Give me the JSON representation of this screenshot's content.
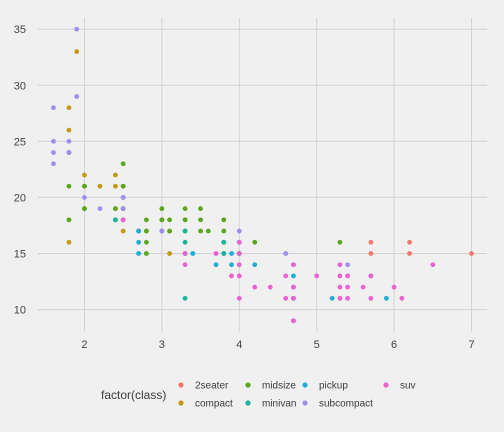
{
  "chart_data": {
    "type": "scatter",
    "title": "",
    "xlabel": "",
    "ylabel": "",
    "xlim": [
      1.4,
      7.2
    ],
    "ylim": [
      8,
      36
    ],
    "x_ticks": [
      2,
      3,
      4,
      5,
      6,
      7
    ],
    "y_ticks": [
      10,
      15,
      20,
      25,
      30,
      35
    ],
    "grid": true,
    "legend": {
      "title": "factor(class)",
      "position": "bottom",
      "entries": [
        {
          "label": "2seater",
          "color": "#f0796b"
        },
        {
          "label": "midsize",
          "color": "#5aa61c"
        },
        {
          "label": "pickup",
          "color": "#1fadd8"
        },
        {
          "label": "suv",
          "color": "#ea61d2"
        },
        {
          "label": "compact",
          "color": "#c49a14"
        },
        {
          "label": "minivan",
          "color": "#19b39e"
        },
        {
          "label": "subcompact",
          "color": "#a18cf0"
        }
      ]
    },
    "series": [
      {
        "name": "2seater",
        "color": "#f0796b",
        "points": [
          [
            5.7,
            16
          ],
          [
            5.7,
            15
          ],
          [
            6.2,
            16
          ],
          [
            6.2,
            15
          ],
          [
            7.0,
            15
          ]
        ]
      },
      {
        "name": "compact",
        "color": "#c49a14",
        "points": [
          [
            1.8,
            16
          ],
          [
            1.8,
            24
          ],
          [
            1.8,
            26
          ],
          [
            1.8,
            28
          ],
          [
            1.9,
            33
          ],
          [
            2.0,
            19
          ],
          [
            2.0,
            21
          ],
          [
            2.0,
            22
          ],
          [
            2.2,
            21
          ],
          [
            2.4,
            19
          ],
          [
            2.4,
            21
          ],
          [
            2.4,
            22
          ],
          [
            2.5,
            17
          ],
          [
            2.5,
            19
          ],
          [
            2.5,
            21
          ],
          [
            2.8,
            17
          ],
          [
            3.0,
            18
          ],
          [
            3.1,
            15
          ],
          [
            3.1,
            17
          ],
          [
            3.3,
            18
          ]
        ]
      },
      {
        "name": "midsize",
        "color": "#5aa61c",
        "points": [
          [
            1.8,
            18
          ],
          [
            1.8,
            21
          ],
          [
            2.0,
            19
          ],
          [
            2.0,
            21
          ],
          [
            2.4,
            18
          ],
          [
            2.4,
            19
          ],
          [
            2.5,
            18
          ],
          [
            2.5,
            19
          ],
          [
            2.5,
            20
          ],
          [
            2.5,
            21
          ],
          [
            2.5,
            23
          ],
          [
            2.7,
            17
          ],
          [
            2.8,
            15
          ],
          [
            2.8,
            16
          ],
          [
            2.8,
            17
          ],
          [
            2.8,
            18
          ],
          [
            3.0,
            18
          ],
          [
            3.0,
            19
          ],
          [
            3.1,
            17
          ],
          [
            3.1,
            18
          ],
          [
            3.3,
            17
          ],
          [
            3.3,
            18
          ],
          [
            3.3,
            19
          ],
          [
            3.5,
            17
          ],
          [
            3.5,
            18
          ],
          [
            3.5,
            19
          ],
          [
            3.6,
            17
          ],
          [
            3.8,
            15
          ],
          [
            3.8,
            16
          ],
          [
            3.8,
            17
          ],
          [
            3.8,
            18
          ],
          [
            4.0,
            15
          ],
          [
            4.2,
            16
          ],
          [
            5.3,
            16
          ]
        ]
      },
      {
        "name": "minivan",
        "color": "#19b39e",
        "points": [
          [
            2.4,
            18
          ],
          [
            3.0,
            17
          ],
          [
            3.3,
            11
          ],
          [
            3.3,
            15
          ],
          [
            3.3,
            16
          ],
          [
            3.3,
            17
          ],
          [
            3.8,
            15
          ],
          [
            3.8,
            16
          ],
          [
            4.0,
            15
          ],
          [
            4.0,
            16
          ]
        ]
      },
      {
        "name": "pickup",
        "color": "#1fadd8",
        "points": [
          [
            2.7,
            15
          ],
          [
            2.7,
            16
          ],
          [
            2.7,
            17
          ],
          [
            3.4,
            15
          ],
          [
            3.7,
            14
          ],
          [
            3.9,
            14
          ],
          [
            3.9,
            15
          ],
          [
            4.2,
            14
          ],
          [
            4.7,
            9
          ],
          [
            4.7,
            11
          ],
          [
            4.7,
            12
          ],
          [
            4.7,
            13
          ],
          [
            4.7,
            14
          ],
          [
            5.2,
            11
          ],
          [
            5.7,
            13
          ],
          [
            5.9,
            11
          ]
        ]
      },
      {
        "name": "subcompact",
        "color": "#a18cf0",
        "points": [
          [
            1.6,
            23
          ],
          [
            1.6,
            24
          ],
          [
            1.6,
            25
          ],
          [
            1.6,
            28
          ],
          [
            1.8,
            24
          ],
          [
            1.8,
            25
          ],
          [
            1.9,
            29
          ],
          [
            1.9,
            35
          ],
          [
            2.0,
            20
          ],
          [
            2.2,
            19
          ],
          [
            2.5,
            19
          ],
          [
            2.5,
            20
          ],
          [
            3.0,
            17
          ],
          [
            4.0,
            17
          ],
          [
            4.6,
            15
          ],
          [
            5.4,
            14
          ]
        ]
      },
      {
        "name": "suv",
        "color": "#ea61d2",
        "points": [
          [
            2.5,
            18
          ],
          [
            3.3,
            14
          ],
          [
            3.3,
            15
          ],
          [
            3.7,
            15
          ],
          [
            3.9,
            13
          ],
          [
            4.0,
            11
          ],
          [
            4.0,
            13
          ],
          [
            4.0,
            14
          ],
          [
            4.0,
            15
          ],
          [
            4.0,
            16
          ],
          [
            4.2,
            12
          ],
          [
            4.4,
            12
          ],
          [
            4.6,
            11
          ],
          [
            4.6,
            13
          ],
          [
            4.7,
            9
          ],
          [
            4.7,
            11
          ],
          [
            4.7,
            12
          ],
          [
            4.7,
            14
          ],
          [
            5.0,
            13
          ],
          [
            5.3,
            11
          ],
          [
            5.3,
            12
          ],
          [
            5.3,
            13
          ],
          [
            5.3,
            14
          ],
          [
            5.4,
            11
          ],
          [
            5.4,
            12
          ],
          [
            5.4,
            13
          ],
          [
            5.6,
            12
          ],
          [
            5.7,
            11
          ],
          [
            5.7,
            13
          ],
          [
            6.0,
            12
          ],
          [
            6.1,
            11
          ],
          [
            6.5,
            14
          ]
        ]
      }
    ]
  }
}
